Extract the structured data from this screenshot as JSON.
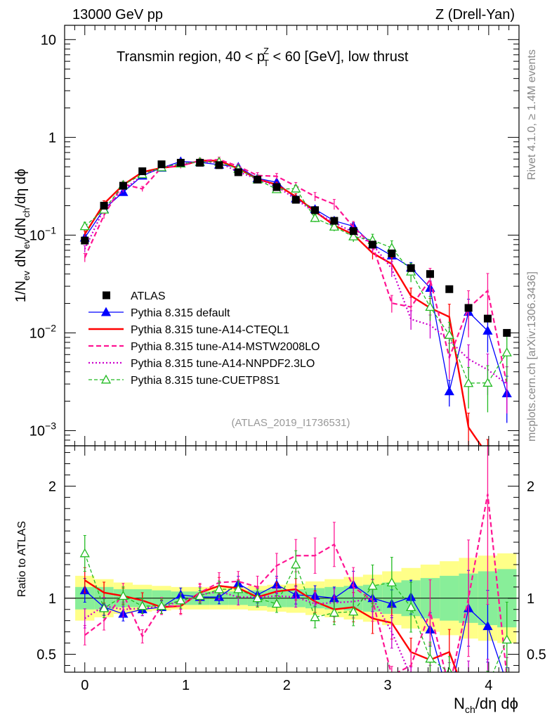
{
  "header": {
    "left": "13000 GeV pp",
    "right": "Z (Drell-Yan)"
  },
  "side_labels": {
    "rivet": "Rivet 4.1.0, ≥ 1.4M events",
    "mcplots": "mcplots.cern.ch [arXiv:1306.3436]"
  },
  "chart_data": {
    "type": "line",
    "title_parts": {
      "pre": "Transmin region, 40 < p",
      "sup": "Z",
      "sub": "T",
      "post": " < 60 [GeV], low thrust"
    },
    "analysis_tag": "(ATLAS_2019_I1736531)",
    "xlabel": {
      "p1": "N",
      "s1": "ch",
      "p2": "/dη dϕ"
    },
    "ylabel": {
      "p1": "1/N",
      "s1": "ev",
      "p2": " dN",
      "s2": "ev",
      "p3": "/dN",
      "s3": "ch",
      "p4": "/dη dϕ"
    },
    "ratio_ylabel": "Ratio to ATLAS",
    "xlim": [
      -0.2,
      4.3
    ],
    "ylim_main": [
      0.0007,
      14
    ],
    "ylim_ratio": [
      0.34,
      2.36
    ],
    "y_scale": "log",
    "x_ticks": [
      0,
      1,
      2,
      3,
      4
    ],
    "x_tick_labels": [
      "0",
      "1",
      "2",
      "3",
      "4"
    ],
    "y_main_ticks": [
      {
        "value": 10,
        "base": "10",
        "exp": ""
      },
      {
        "value": 1,
        "base": "1",
        "exp": ""
      },
      {
        "value": 0.1,
        "base": "10",
        "exp": "−1"
      },
      {
        "value": 0.01,
        "base": "10",
        "exp": "−2"
      },
      {
        "value": 0.001,
        "base": "10",
        "exp": "−3"
      }
    ],
    "y_ratio_ticks": [
      {
        "value": 0.5,
        "label": "0.5"
      },
      {
        "value": 1,
        "label": "1"
      },
      {
        "value": 2,
        "label": "2"
      }
    ],
    "x": [
      0,
      0.19,
      0.38,
      0.57,
      0.76,
      0.95,
      1.14,
      1.33,
      1.52,
      1.71,
      1.9,
      2.09,
      2.28,
      2.47,
      2.66,
      2.85,
      3.04,
      3.23,
      3.42,
      3.61,
      3.8,
      3.99,
      4.18
    ],
    "band_edges": [
      -0.095,
      0.095,
      0.285,
      0.475,
      0.665,
      0.855,
      1.045,
      1.235,
      1.425,
      1.615,
      1.805,
      1.995,
      2.185,
      2.375,
      2.565,
      2.755,
      2.945,
      3.135,
      3.325,
      3.515,
      3.705,
      3.895,
      4.085,
      4.275
    ],
    "atlas": [
      0.088,
      0.2,
      0.32,
      0.45,
      0.53,
      0.55,
      0.55,
      0.52,
      0.44,
      0.37,
      0.31,
      0.23,
      0.18,
      0.14,
      0.11,
      0.08,
      0.065,
      0.046,
      0.04,
      0.028,
      0.018,
      0.014,
      0.01
    ],
    "band_inner": [
      0.1,
      0.1,
      0.08,
      0.08,
      0.07,
      0.06,
      0.06,
      0.06,
      0.06,
      0.07,
      0.08,
      0.08,
      0.09,
      0.1,
      0.11,
      0.12,
      0.14,
      0.16,
      0.18,
      0.2,
      0.22,
      0.24,
      0.26
    ],
    "band_outer": [
      0.2,
      0.17,
      0.14,
      0.12,
      0.11,
      0.1,
      0.1,
      0.1,
      0.1,
      0.11,
      0.12,
      0.13,
      0.15,
      0.17,
      0.19,
      0.21,
      0.24,
      0.27,
      0.3,
      0.33,
      0.36,
      0.38,
      0.4
    ],
    "legend": [
      {
        "key": "atlas",
        "label": "ATLAS"
      },
      {
        "key": "default",
        "label": "Pythia 8.315 default"
      },
      {
        "key": "cteql1",
        "label": "Pythia 8.315 tune-A14-CTEQL1"
      },
      {
        "key": "mstw",
        "label": "Pythia 8.315 tune-A14-MSTW2008LO"
      },
      {
        "key": "nnpdf",
        "label": "Pythia 8.315 tune-A14-NNPDF2.3LO"
      },
      {
        "key": "cuetp8s1",
        "label": "Pythia 8.315 tune-CUETP8S1"
      }
    ],
    "series": [
      {
        "key": "default",
        "color": "#0000ff",
        "dash": "",
        "width": 1.3,
        "marker": "tri-filled",
        "ratio": [
          1.07,
          0.92,
          0.86,
          0.9,
          0.92,
          1.03,
          1.01,
          1.01,
          1.13,
          1.03,
          1.12,
          1.03,
          1.02,
          1.0,
          1.12,
          1.0,
          0.95,
          1.01,
          0.72,
          0.09,
          0.91,
          0.75,
          0.24
        ],
        "err": [
          0.08,
          0.06,
          0.05,
          0.04,
          0.04,
          0.04,
          0.04,
          0.04,
          0.04,
          0.05,
          0.05,
          0.06,
          0.07,
          0.08,
          0.09,
          0.1,
          0.11,
          0.13,
          0.18,
          0.3,
          0.35,
          0.4,
          0.5
        ]
      },
      {
        "key": "cteql1",
        "color": "#ff0000",
        "dash": "",
        "width": 2.4,
        "marker": "none",
        "ratio": [
          1.16,
          1.05,
          1.02,
          0.98,
          0.92,
          0.93,
          1.05,
          1.11,
          1.09,
          1.01,
          1.06,
          1.08,
          0.97,
          0.9,
          0.92,
          0.82,
          0.78,
          0.52,
          0.45,
          0.52,
          0.06,
          0.04,
          0.04
        ],
        "err": [
          0.08,
          0.07,
          0.05,
          0.05,
          0.05,
          0.05,
          0.05,
          0.05,
          0.05,
          0.06,
          0.06,
          0.07,
          0.08,
          0.1,
          0.12,
          0.14,
          0.16,
          0.2,
          0.25,
          0.35,
          0.4,
          0.45,
          0.5
        ]
      },
      {
        "key": "mstw",
        "color": "#ff1493",
        "dash": "7,4",
        "width": 2.2,
        "marker": "none",
        "ratio": [
          0.67,
          0.8,
          1.04,
          0.66,
          0.93,
          0.93,
          1.05,
          1.14,
          1.15,
          1.1,
          1.29,
          1.38,
          1.38,
          1.48,
          1.1,
          0.98,
          0.31,
          0.4,
          0.88,
          0.2,
          1.0,
          1.93,
          0.3
        ],
        "err": [
          0.1,
          0.08,
          0.07,
          0.06,
          0.06,
          0.06,
          0.06,
          0.06,
          0.06,
          0.07,
          0.07,
          0.09,
          0.1,
          0.12,
          0.14,
          0.17,
          0.2,
          0.25,
          0.3,
          0.4,
          0.5,
          0.5,
          0.5
        ]
      },
      {
        "key": "nnpdf",
        "color": "#cc00cc",
        "dash": "2,3",
        "width": 2.2,
        "marker": "none",
        "ratio": [
          0.82,
          0.93,
          0.9,
          0.91,
          0.93,
          0.97,
          1.03,
          1.06,
          1.01,
          1.01,
          1.02,
          1.01,
          0.95,
          0.96,
          0.97,
          1.0,
          0.7,
          0.3,
          0.3,
          0.3,
          0.3,
          0.3,
          0.3
        ],
        "err": [
          0.08,
          0.06,
          0.05,
          0.05,
          0.05,
          0.05,
          0.05,
          0.05,
          0.05,
          0.06,
          0.06,
          0.07,
          0.09,
          0.11,
          0.13,
          0.15,
          0.18,
          0.22,
          0.27,
          0.35,
          0.4,
          0.45,
          0.5
        ]
      },
      {
        "key": "cuetp8s1",
        "color": "#22bb22",
        "dash": "5,3",
        "width": 1.3,
        "marker": "tri-open",
        "ratio": [
          1.4,
          0.91,
          1.02,
          0.93,
          0.93,
          0.98,
          1.02,
          1.08,
          1.08,
          1.0,
          0.95,
          1.3,
          0.83,
          0.87,
          0.88,
          1.11,
          1.14,
          0.92,
          0.46,
          0.34,
          0.17,
          0.22,
          0.63
        ],
        "err": [
          0.1,
          0.07,
          0.06,
          0.05,
          0.05,
          0.05,
          0.05,
          0.05,
          0.05,
          0.06,
          0.06,
          0.08,
          0.09,
          0.1,
          0.12,
          0.15,
          0.18,
          0.22,
          0.28,
          0.35,
          0.45,
          0.5,
          0.5
        ]
      }
    ]
  }
}
